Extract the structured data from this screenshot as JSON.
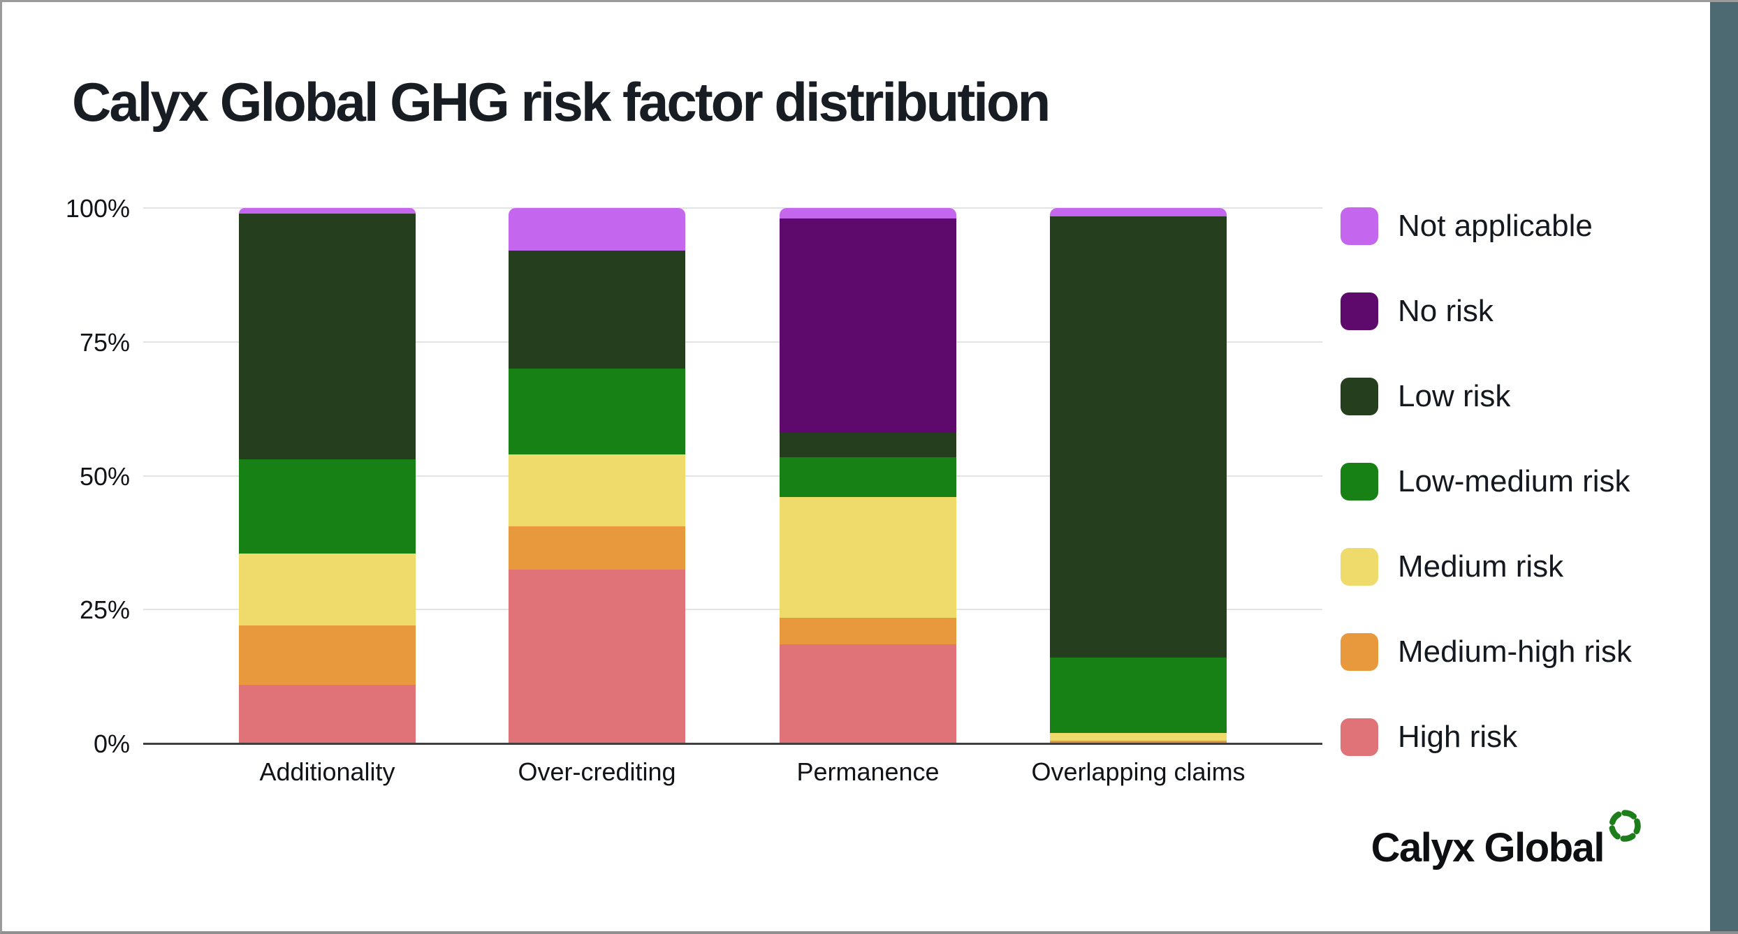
{
  "page": {
    "title": "Calyx Global GHG risk factor distribution",
    "footer": {
      "logo_text": "Calyx Global"
    }
  },
  "colors": {
    "title_text": "#181c23",
    "axis_text": "#101318",
    "grid_line": "#e3e3e3",
    "axis_line": "#3f3f3f",
    "right_edge_bar": "#4d6a73",
    "frame_border": "#9b9b9b",
    "logo_green": "#1e7d1b"
  },
  "chart_data": {
    "type": "bar",
    "stacked": true,
    "units": "percent",
    "title": "Calyx Global GHG risk factor distribution",
    "xlabel": "",
    "ylabel": "",
    "categories": [
      "Additionality",
      "Over-crediting",
      "Permanence",
      "Overlapping claims"
    ],
    "series": [
      {
        "name": "Not applicable",
        "color": "#c566ef",
        "values": [
          1,
          8,
          2,
          1.5
        ]
      },
      {
        "name": "No risk",
        "color": "#5e0a6c",
        "values": [
          0,
          0,
          40,
          0
        ]
      },
      {
        "name": "Low risk",
        "color": "#253e1e",
        "values": [
          46,
          22,
          4.5,
          82.5
        ]
      },
      {
        "name": "Low-medium risk",
        "color": "#178115",
        "values": [
          17.5,
          16,
          7.5,
          14
        ]
      },
      {
        "name": "Medium risk",
        "color": "#eedb6c",
        "values": [
          13.5,
          13.5,
          22.5,
          1.5
        ]
      },
      {
        "name": "Medium-high risk",
        "color": "#e9993d",
        "values": [
          11,
          8,
          5,
          0.5
        ]
      },
      {
        "name": "High risk",
        "color": "#e07377",
        "values": [
          11,
          32.5,
          18.5,
          0
        ]
      }
    ],
    "y_ticks": [
      "100%",
      "75%",
      "50%",
      "25%",
      "0%"
    ],
    "y_tick_values": [
      100,
      75,
      50,
      25,
      0
    ],
    "ylim": [
      0,
      100
    ],
    "grid": true,
    "legend_position": "right"
  }
}
